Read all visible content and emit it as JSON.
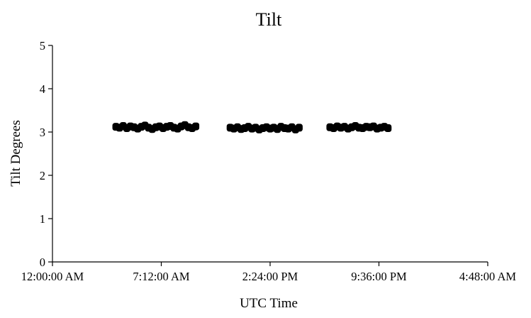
{
  "chart_data": {
    "type": "scatter",
    "title": "Tilt",
    "xlabel": "UTC Time",
    "ylabel": "Tilt Degrees",
    "x_unit": "fraction of day (UTC)",
    "xlim": [
      0,
      1.2
    ],
    "ylim": [
      0,
      5
    ],
    "x_ticks": [
      {
        "value": 0.0,
        "label": "12:00:00 AM"
      },
      {
        "value": 0.3,
        "label": "7:12:00 AM"
      },
      {
        "value": 0.6,
        "label": "2:24:00 PM"
      },
      {
        "value": 0.9,
        "label": "9:36:00 PM"
      },
      {
        "value": 1.2,
        "label": "4:48:00 AM"
      }
    ],
    "y_ticks": [
      0,
      1,
      2,
      3,
      4,
      5
    ],
    "grid": false,
    "legend": "none",
    "marker_color": "#000000",
    "series": [
      {
        "x": [
          0.175,
          0.185,
          0.195,
          0.205,
          0.215,
          0.225,
          0.235,
          0.245,
          0.255,
          0.265,
          0.275,
          0.285,
          0.295,
          0.305,
          0.315,
          0.325,
          0.335,
          0.345,
          0.355,
          0.365,
          0.375,
          0.385,
          0.395,
          0.49,
          0.5,
          0.51,
          0.52,
          0.53,
          0.54,
          0.55,
          0.56,
          0.57,
          0.58,
          0.59,
          0.6,
          0.61,
          0.62,
          0.63,
          0.64,
          0.65,
          0.66,
          0.67,
          0.68,
          0.765,
          0.775,
          0.785,
          0.795,
          0.805,
          0.815,
          0.825,
          0.835,
          0.845,
          0.855,
          0.865,
          0.875,
          0.885,
          0.895,
          0.905,
          0.915,
          0.925
        ],
        "y": [
          3.12,
          3.1,
          3.14,
          3.09,
          3.13,
          3.11,
          3.08,
          3.12,
          3.15,
          3.1,
          3.07,
          3.11,
          3.13,
          3.09,
          3.12,
          3.14,
          3.1,
          3.08,
          3.13,
          3.16,
          3.11,
          3.09,
          3.13,
          3.1,
          3.08,
          3.11,
          3.07,
          3.09,
          3.12,
          3.08,
          3.1,
          3.06,
          3.09,
          3.11,
          3.08,
          3.1,
          3.07,
          3.12,
          3.09,
          3.08,
          3.11,
          3.06,
          3.1,
          3.11,
          3.09,
          3.13,
          3.1,
          3.12,
          3.08,
          3.11,
          3.14,
          3.1,
          3.09,
          3.12,
          3.11,
          3.13,
          3.08,
          3.1,
          3.12,
          3.09
        ]
      }
    ]
  }
}
